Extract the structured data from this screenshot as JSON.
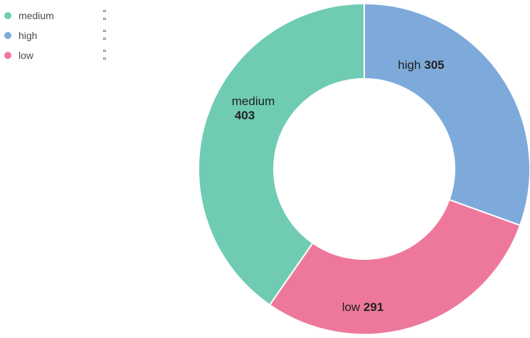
{
  "chart_data": {
    "type": "donut",
    "title": "",
    "categories": [
      "high",
      "low",
      "medium"
    ],
    "values": [
      305,
      291,
      403
    ],
    "colors": [
      "#7eaadb",
      "#ee789c",
      "#6fccb2"
    ],
    "legend": {
      "placement": "top-left",
      "items": [
        {
          "label": "medium",
          "color": "#6fccb2"
        },
        {
          "label": "high",
          "color": "#7eaadb"
        },
        {
          "label": "low",
          "color": "#ee789c"
        }
      ]
    }
  }
}
